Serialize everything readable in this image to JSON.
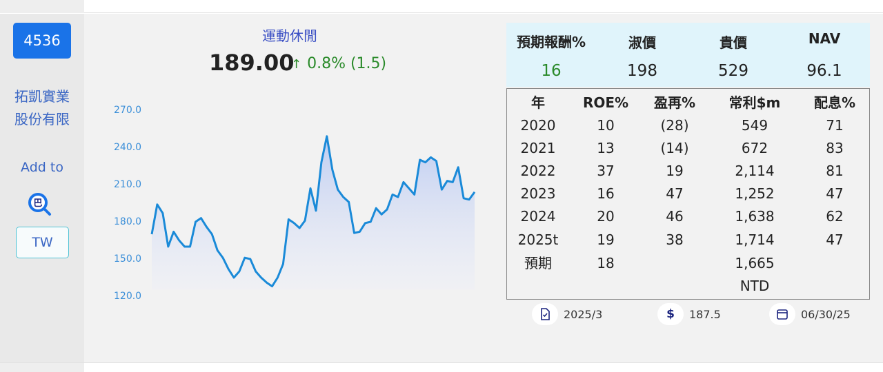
{
  "stock": {
    "code": "4536",
    "company_line1": "拓凱實業",
    "company_line2": "股份有限",
    "add_to": "Add to",
    "search_badge": "巴",
    "market": "TW",
    "category": "運動休閒",
    "price": "189.00",
    "change_arrow": "↑",
    "change": "0.8% (1.5)"
  },
  "colors": {
    "accent": "#1a73e8",
    "up": "#2a8a2a",
    "line": "#1a8ad8",
    "valuation_bg": "#e0f4fb"
  },
  "valuation": {
    "headers": [
      "預期報酬%",
      "淑價",
      "貴價",
      "NAV"
    ],
    "values": [
      "16",
      "198",
      "529",
      "96.1"
    ]
  },
  "financials": {
    "headers": [
      "年",
      "ROE%",
      "盈再%",
      "常利$m",
      "配息%"
    ],
    "rows": [
      [
        "2020",
        "10",
        "(28)",
        "549",
        "71"
      ],
      [
        "2021",
        "13",
        "(14)",
        "672",
        "83"
      ],
      [
        "2022",
        "37",
        "19",
        "2,114",
        "81"
      ],
      [
        "2023",
        "16",
        "47",
        "1,252",
        "47"
      ],
      [
        "2024",
        "20",
        "46",
        "1,638",
        "62"
      ],
      [
        "2025t",
        "19",
        "38",
        "1,714",
        "47"
      ],
      [
        "預期",
        "18",
        "",
        "1,665",
        ""
      ]
    ],
    "currency": "NTD"
  },
  "footer": {
    "report_period": "2025/3",
    "ref_price": "187.5",
    "date": "06/30/25",
    "icons": [
      "document-check-icon",
      "dollar-icon",
      "calendar-icon"
    ]
  },
  "chart_data": {
    "type": "area",
    "ylim": [
      120,
      270
    ],
    "yticks": [
      "270.0",
      "240.0",
      "210.0",
      "180.0",
      "150.0",
      "120.0"
    ],
    "grid": false,
    "values": [
      170,
      194,
      187,
      160,
      172,
      165,
      160,
      160,
      180,
      183,
      176,
      170,
      157,
      151,
      142,
      135,
      140,
      151,
      150,
      140,
      135,
      131,
      128,
      135,
      146,
      182,
      179,
      175,
      181,
      207,
      189,
      228,
      249,
      222,
      206,
      200,
      196,
      171,
      172,
      179,
      180,
      191,
      186,
      190,
      202,
      200,
      212,
      207,
      202,
      230,
      228,
      232,
      229,
      206,
      213,
      212,
      224,
      199,
      198,
      204
    ]
  }
}
